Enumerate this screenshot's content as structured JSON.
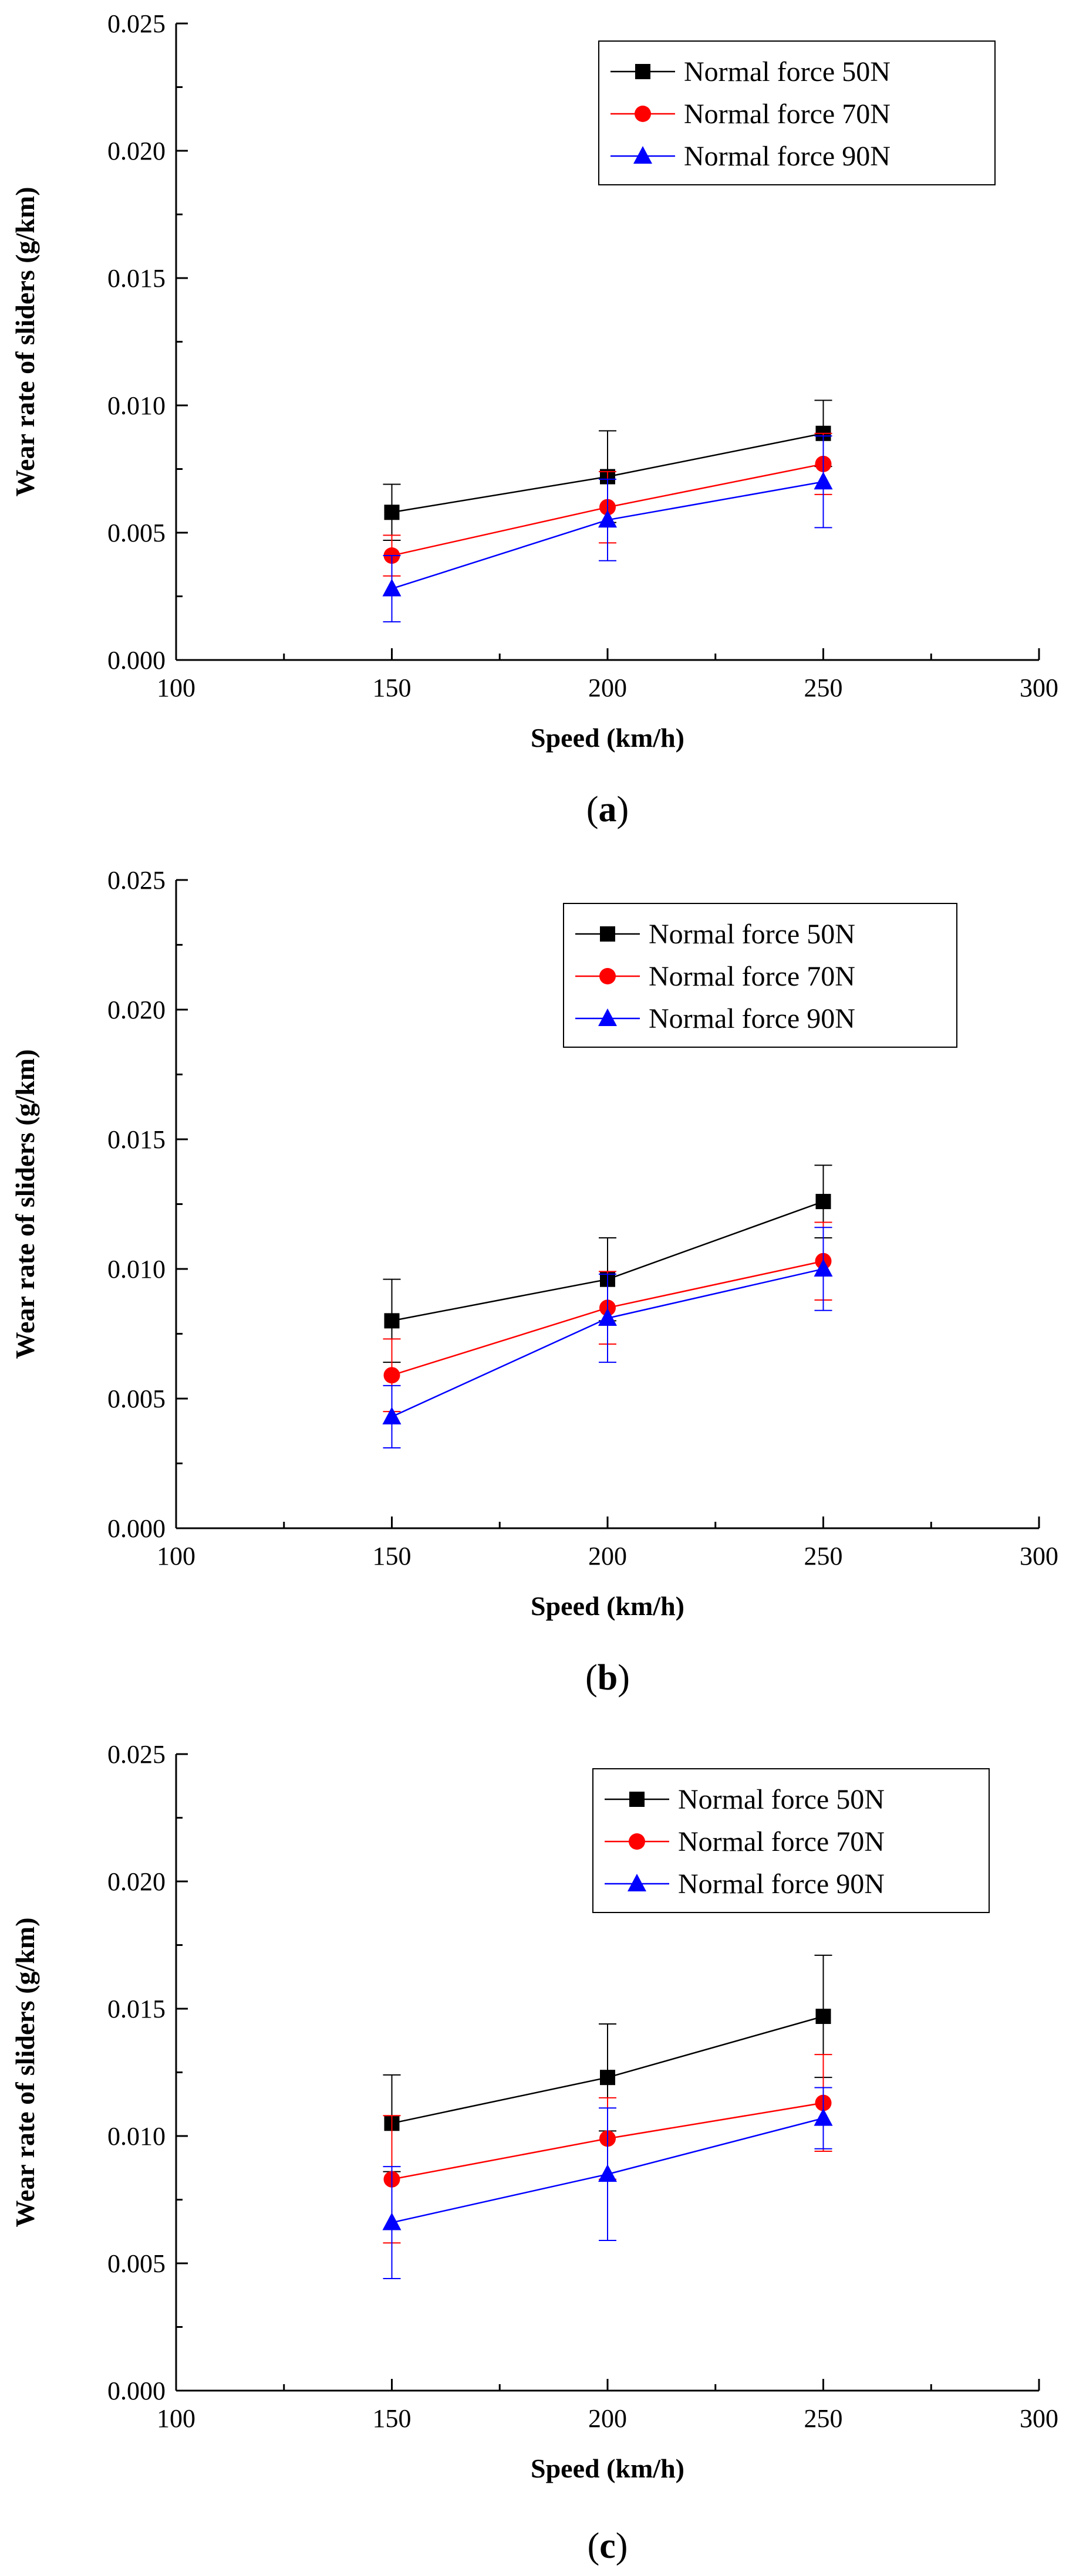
{
  "chart_data": [
    {
      "type": "line",
      "panel": "a",
      "caption_open": "(",
      "caption_label": "a",
      "caption_close": ")",
      "xlabel": "Speed (km/h)",
      "ylabel": "Wear rate of sliders (g/km)",
      "xlim": [
        100,
        300
      ],
      "ylim": [
        0,
        0.025
      ],
      "x_ticks": [
        "100",
        "150",
        "200",
        "250",
        "300"
      ],
      "y_ticks": [
        "0.000",
        "0.005",
        "0.010",
        "0.015",
        "0.020",
        "0.025"
      ],
      "legend_position": "top-right",
      "x": [
        150,
        200,
        250
      ],
      "series": [
        {
          "name": "Normal force 50N",
          "marker": "square",
          "color": "#000000",
          "values": [
            0.0058,
            0.0072,
            0.0089
          ],
          "errors": [
            0.0011,
            0.0018,
            0.0013
          ]
        },
        {
          "name": "Normal force 70N",
          "marker": "circle",
          "color": "#ff0000",
          "values": [
            0.0041,
            0.006,
            0.0077
          ],
          "errors": [
            0.0008,
            0.0014,
            0.0012
          ]
        },
        {
          "name": "Normal force 90N",
          "marker": "triangle",
          "color": "#0000ff",
          "values": [
            0.0028,
            0.0055,
            0.007
          ],
          "errors": [
            0.0013,
            0.0016,
            0.0018
          ]
        }
      ]
    },
    {
      "type": "line",
      "panel": "b",
      "caption_open": "(",
      "caption_label": "b",
      "caption_close": ")",
      "xlabel": "Speed (km/h)",
      "ylabel": "Wear rate of sliders (g/km)",
      "xlim": [
        100,
        300
      ],
      "ylim": [
        0,
        0.025
      ],
      "x_ticks": [
        "100",
        "150",
        "200",
        "250",
        "300"
      ],
      "y_ticks": [
        "0.000",
        "0.005",
        "0.010",
        "0.015",
        "0.020",
        "0.025"
      ],
      "legend_position": "top-right",
      "x": [
        150,
        200,
        250
      ],
      "series": [
        {
          "name": "Normal force 50N",
          "marker": "square",
          "color": "#000000",
          "values": [
            0.008,
            0.0096,
            0.0126
          ],
          "errors": [
            0.0016,
            0.0016,
            0.0014
          ]
        },
        {
          "name": "Normal force 70N",
          "marker": "circle",
          "color": "#ff0000",
          "values": [
            0.0059,
            0.0085,
            0.0103
          ],
          "errors": [
            0.0014,
            0.0014,
            0.0015
          ]
        },
        {
          "name": "Normal force 90N",
          "marker": "triangle",
          "color": "#0000ff",
          "values": [
            0.0043,
            0.0081,
            0.01
          ],
          "errors": [
            0.0012,
            0.0017,
            0.0016
          ]
        }
      ]
    },
    {
      "type": "line",
      "panel": "c",
      "caption_open": "(",
      "caption_label": "c",
      "caption_close": ")",
      "xlabel": "Speed (km/h)",
      "ylabel": "Wear rate of sliders (g/km)",
      "xlim": [
        100,
        300
      ],
      "ylim": [
        0,
        0.025
      ],
      "x_ticks": [
        "100",
        "150",
        "200",
        "250",
        "300"
      ],
      "y_ticks": [
        "0.000",
        "0.005",
        "0.010",
        "0.015",
        "0.020",
        "0.025"
      ],
      "legend_position": "top-right",
      "x": [
        150,
        200,
        250
      ],
      "series": [
        {
          "name": "Normal force 50N",
          "marker": "square",
          "color": "#000000",
          "values": [
            0.0105,
            0.0123,
            0.0147
          ],
          "errors": [
            0.0019,
            0.0021,
            0.0024
          ]
        },
        {
          "name": "Normal force 70N",
          "marker": "circle",
          "color": "#ff0000",
          "values": [
            0.0083,
            0.0099,
            0.0113
          ],
          "errors": [
            0.0025,
            0.0016,
            0.0019
          ]
        },
        {
          "name": "Normal force 90N",
          "marker": "triangle",
          "color": "#0000ff",
          "values": [
            0.0066,
            0.0085,
            0.0107
          ],
          "errors": [
            0.0022,
            0.0026,
            0.0012
          ]
        }
      ]
    }
  ]
}
